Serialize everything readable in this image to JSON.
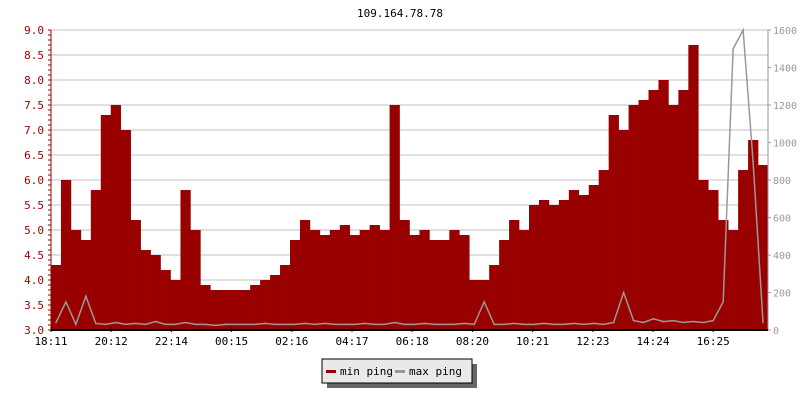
{
  "chart_data": {
    "type": "bar",
    "title": "109.164.78.78",
    "xlabel": "",
    "ylabel": "",
    "ylim": [
      3.0,
      9.0
    ],
    "y2lim": [
      0,
      1600
    ],
    "yticks": [
      "3.0",
      "3.5",
      "4.0",
      "4.5",
      "5.0",
      "5.5",
      "6.0",
      "6.5",
      "7.0",
      "7.5",
      "8.0",
      "8.5",
      "9.0"
    ],
    "y2ticks": [
      "0",
      "200",
      "400",
      "600",
      "800",
      "1000",
      "1200",
      "1400",
      "1600"
    ],
    "xticks": [
      "18:11",
      "20:12",
      "22:14",
      "00:15",
      "02:16",
      "04:17",
      "06:18",
      "08:20",
      "10:21",
      "12:23",
      "14:24",
      "16:25"
    ],
    "grid": true,
    "legend_position": "bottom-center",
    "colors": {
      "min_ping": "#990000",
      "max_ping": "#999999",
      "axis_left": "#990000",
      "axis_right": "#999999",
      "grid": "#c0c0c0"
    },
    "x": [
      "18:11",
      "18:31",
      "18:51",
      "19:11",
      "19:31",
      "19:51",
      "20:11",
      "20:31",
      "20:51",
      "21:11",
      "21:31",
      "21:51",
      "22:11",
      "22:31",
      "22:51",
      "23:11",
      "23:31",
      "23:51",
      "00:11",
      "00:31",
      "00:51",
      "01:11",
      "01:31",
      "01:51",
      "02:11",
      "02:31",
      "02:51",
      "03:11",
      "03:31",
      "03:51",
      "04:11",
      "04:31",
      "04:51",
      "05:11",
      "05:31",
      "05:51",
      "06:11",
      "06:31",
      "06:51",
      "07:11",
      "07:31",
      "07:51",
      "08:11",
      "08:31",
      "08:51",
      "09:11",
      "09:31",
      "09:51",
      "10:11",
      "10:31",
      "10:51",
      "11:11",
      "11:31",
      "11:51",
      "12:11",
      "12:31",
      "12:51",
      "13:11",
      "13:31",
      "13:51",
      "14:11",
      "14:31",
      "14:51",
      "15:11",
      "15:31",
      "15:51",
      "16:11",
      "16:31",
      "16:51",
      "17:11",
      "17:31",
      "17:51"
    ],
    "series": [
      {
        "name": "min ping",
        "axis": "left",
        "values": [
          4.3,
          6.0,
          5.0,
          4.8,
          5.8,
          7.3,
          7.5,
          7.0,
          5.2,
          4.6,
          4.5,
          4.2,
          4.0,
          5.8,
          5.0,
          3.9,
          3.8,
          3.8,
          3.8,
          3.8,
          3.9,
          4.0,
          4.1,
          4.3,
          4.8,
          5.2,
          5.0,
          4.9,
          5.0,
          5.1,
          4.9,
          5.0,
          5.1,
          5.0,
          7.5,
          5.2,
          4.9,
          5.0,
          4.8,
          4.8,
          5.0,
          4.9,
          4.0,
          4.0,
          4.3,
          4.8,
          5.2,
          5.0,
          5.5,
          5.6,
          5.5,
          5.6,
          5.8,
          5.7,
          5.9,
          6.2,
          7.3,
          7.0,
          7.5,
          7.6,
          7.8,
          8.0,
          7.5,
          7.8,
          8.7,
          6.0,
          5.8,
          5.2,
          5.0,
          6.2,
          6.8,
          6.3
        ]
      },
      {
        "name": "max ping",
        "axis": "right",
        "values": [
          40,
          150,
          30,
          180,
          35,
          30,
          40,
          30,
          35,
          30,
          45,
          30,
          30,
          40,
          30,
          30,
          25,
          30,
          30,
          30,
          30,
          35,
          30,
          30,
          30,
          35,
          30,
          35,
          30,
          30,
          30,
          35,
          30,
          30,
          40,
          30,
          30,
          35,
          30,
          30,
          30,
          35,
          30,
          150,
          30,
          30,
          35,
          30,
          30,
          35,
          30,
          30,
          35,
          30,
          35,
          30,
          40,
          200,
          50,
          40,
          60,
          45,
          50,
          40,
          45,
          40,
          50,
          150,
          1500,
          1600,
          900,
          40
        ]
      }
    ]
  }
}
